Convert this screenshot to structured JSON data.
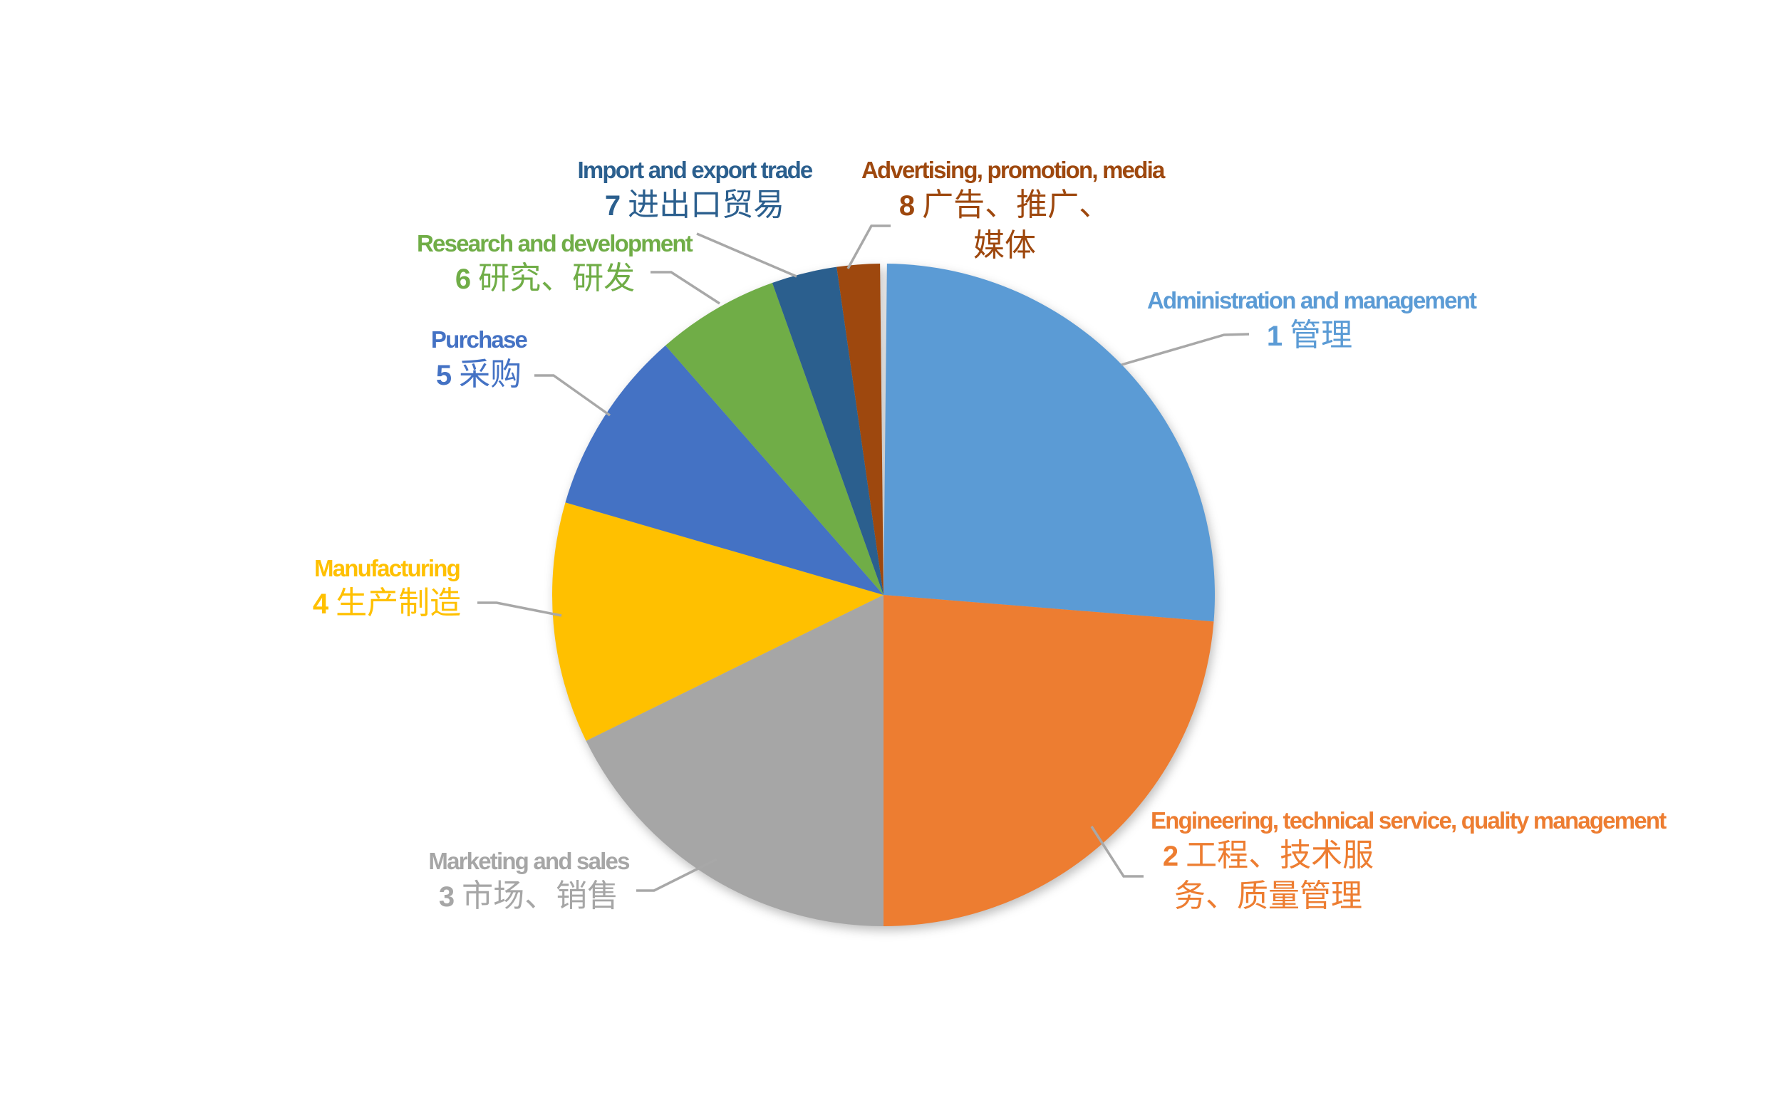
{
  "page": {
    "background": "#ffffff"
  },
  "chart_data": {
    "type": "pie",
    "title": "",
    "legend_position": "callout-labels-around-pie",
    "start_angle_deg": 0.6,
    "total_sweep_deg": 358.8,
    "leader_line_color": "#A8A8A8",
    "slices": [
      {
        "num": "1",
        "label_en": "Administration and management",
        "label_zh": "管理",
        "zh_lines": [
          "管理"
        ],
        "value": 26.2,
        "color": "#5B9BD5"
      },
      {
        "num": "2",
        "label_en": "Engineering, technical service, quality management",
        "label_zh": "工程、技术服务、质量管理",
        "zh_lines": [
          "工程、技术服",
          "务、质量管理"
        ],
        "value": 23.8,
        "color": "#ED7D31"
      },
      {
        "num": "3",
        "label_en": "Marketing and sales",
        "label_zh": "市场、销售",
        "zh_lines": [
          "市场、销售"
        ],
        "value": 17.8,
        "color": "#A6A6A6"
      },
      {
        "num": "4",
        "label_en": "Manufacturing",
        "label_zh": "生产制造",
        "zh_lines": [
          "生产制造"
        ],
        "value": 11.8,
        "color": "#FFC000"
      },
      {
        "num": "5",
        "label_en": "Purchase",
        "label_zh": "采购",
        "zh_lines": [
          "采购"
        ],
        "value": 9.1,
        "color": "#4472C4"
      },
      {
        "num": "6",
        "label_en": "Research and development",
        "label_zh": "研究、研发",
        "zh_lines": [
          "研究、研发"
        ],
        "value": 6.0,
        "color": "#70AD47"
      },
      {
        "num": "7",
        "label_en": "Import and export trade",
        "label_zh": "进出口贸易",
        "zh_lines": [
          "进出口贸易"
        ],
        "value": 3.2,
        "color": "#2B5F8E"
      },
      {
        "num": "8",
        "label_en": "Advertising, promotion, media",
        "label_zh": "广告、推广、媒体",
        "zh_lines": [
          "广告、推广、",
          "媒体"
        ],
        "value": 2.1,
        "color": "#9E480E"
      }
    ]
  }
}
